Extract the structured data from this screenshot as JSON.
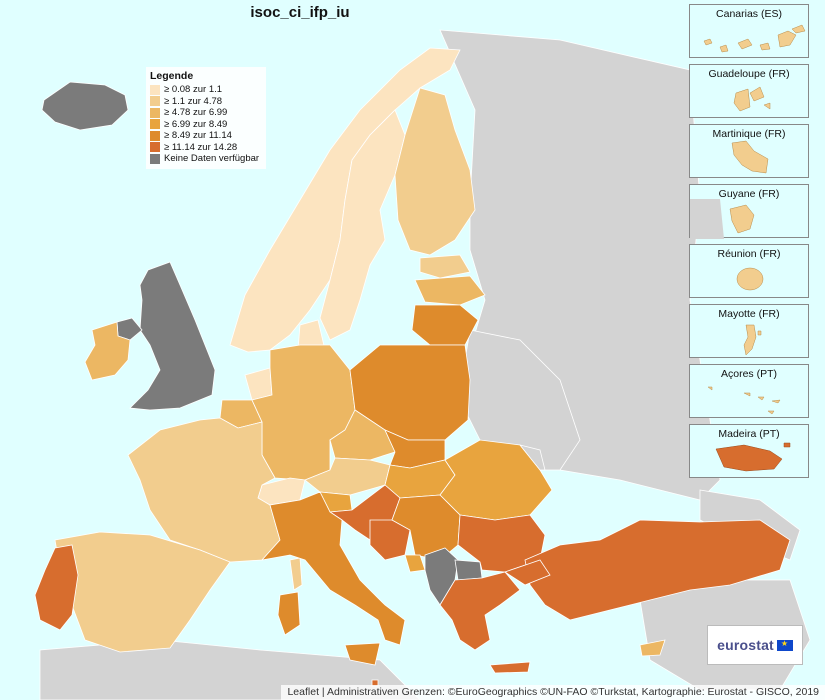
{
  "title": "isoc_ci_ifp_iu",
  "legend": {
    "title": "Legende",
    "items": [
      {
        "label": "≥ 0.08 zur 1.1",
        "color": "#fce4c0"
      },
      {
        "label": "≥ 1.1 zur 4.78",
        "color": "#f2cd8e"
      },
      {
        "label": "≥ 4.78 zur 6.99",
        "color": "#ecb763"
      },
      {
        "label": "≥ 6.99 zur 8.49",
        "color": "#e8a43e"
      },
      {
        "label": "≥ 8.49 zur 11.14",
        "color": "#de8b2c"
      },
      {
        "label": "≥ 11.14 zur 14.28",
        "color": "#d76d2e"
      },
      {
        "label": "Keine Daten verfügbar",
        "color": "#7b7b7b"
      }
    ]
  },
  "insets": [
    {
      "label": "Canarias (ES)"
    },
    {
      "label": "Guadeloupe (FR)"
    },
    {
      "label": "Martinique (FR)"
    },
    {
      "label": "Guyane (FR)"
    },
    {
      "label": "Réunion (FR)"
    },
    {
      "label": "Mayotte (FR)"
    },
    {
      "label": "Açores (PT)"
    },
    {
      "label": "Madeira (PT)"
    }
  ],
  "logo": {
    "text": "eurostat"
  },
  "attribution": "Leaflet | Administrativen Grenzen: ©EuroGeographics ©UN-FAO ©Turkstat, Kartographie: Eurostat - GISCO, 2019",
  "colors": {
    "sea": "#e0ffff",
    "non_eu_land": "#d3d3d3",
    "border": "#ffffff"
  }
}
